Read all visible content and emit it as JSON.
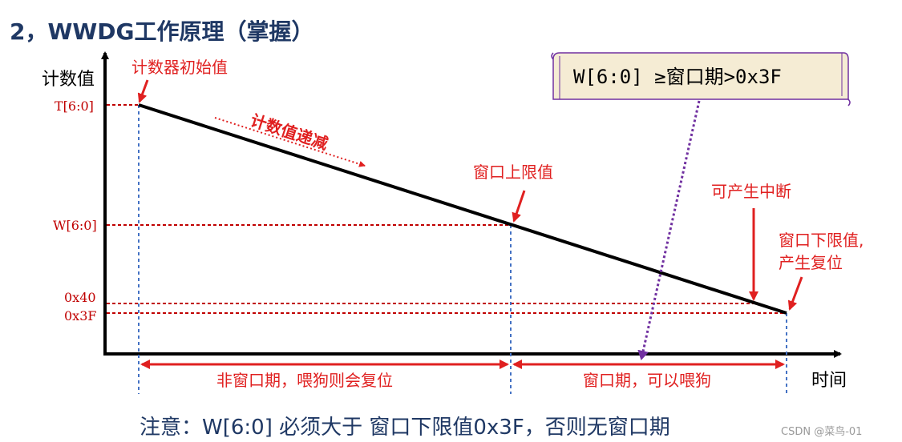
{
  "title": "2，WWDG工作原理（掌握）",
  "note": "注意：W[6:0] 必须大于 窗口下限值0x3F，否则无窗口期",
  "watermark": "CSDN @菜鸟-01",
  "axes": {
    "y_label": "计数值",
    "x_label": "时间"
  },
  "ticks": {
    "t": "T[6:0]",
    "w": "W[6:0]",
    "x40": "0x40",
    "x3f": "0x3F"
  },
  "annotations": {
    "initial_value": "计数器初始值",
    "decreasing": "计数值递减",
    "window_upper": "窗口上限值",
    "interrupt": "可产生中断",
    "window_lower_line1": "窗口下限值,",
    "window_lower_line2": "产生复位"
  },
  "callout": "W[6:0] ≥窗口期>0x3F",
  "spans": {
    "non_window": "非窗口期，喂狗则会复位",
    "window": "窗口期，可以喂狗"
  },
  "colors": {
    "title": "#1f3864",
    "annotation_red": "#e02020",
    "guide_red": "#c00000",
    "guide_blue": "#4472c4",
    "callout_purple": "#7030a0",
    "callout_fill": "#f5ecd4"
  }
}
